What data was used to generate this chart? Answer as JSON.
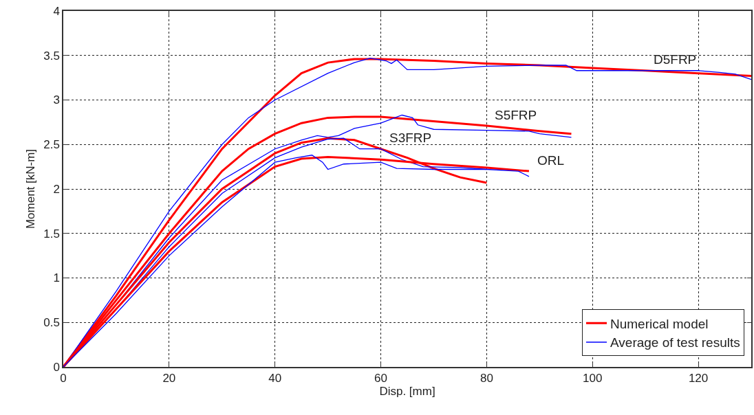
{
  "chart_data": {
    "type": "line",
    "xlabel": "Disp. [mm]",
    "ylabel": "Moment [kN-m]",
    "xlim": [
      0,
      130
    ],
    "ylim": [
      0,
      4
    ],
    "xticks": [
      0,
      20,
      40,
      60,
      80,
      100,
      120
    ],
    "yticks": [
      0,
      0.5,
      1,
      1.5,
      2,
      2.5,
      3,
      3.5,
      4
    ],
    "grid": true,
    "legend": "bottom right",
    "line_style": "solid",
    "series": [
      {
        "name": "Numerical model",
        "color": "#ff0000",
        "x": [
          0,
          10,
          20,
          30,
          40,
          45,
          50,
          55,
          60,
          70,
          80,
          90,
          100,
          110,
          120,
          130
        ],
        "values": [
          0,
          0.8,
          1.65,
          2.45,
          3.05,
          3.3,
          3.42,
          3.46,
          3.46,
          3.44,
          3.41,
          3.39,
          3.36,
          3.33,
          3.3,
          3.27
        ]
      },
      {
        "name": "Average of test results",
        "color": "#0000ff",
        "x": [
          0,
          10,
          20,
          30,
          35,
          40,
          50,
          55,
          58,
          61,
          62,
          63,
          65,
          70,
          75,
          80,
          90,
          95,
          97,
          105,
          120,
          124,
          127,
          130
        ],
        "values": [
          0,
          0.85,
          1.75,
          2.5,
          2.8,
          3.0,
          3.3,
          3.42,
          3.47,
          3.44,
          3.41,
          3.45,
          3.34,
          3.34,
          3.36,
          3.38,
          3.39,
          3.39,
          3.33,
          3.33,
          3.33,
          3.31,
          3.29,
          3.23
        ]
      },
      {
        "color": "#ff0000",
        "x": [
          0,
          10,
          20,
          30,
          35,
          40,
          45,
          50,
          55,
          60,
          70,
          80,
          90,
          96
        ],
        "values": [
          0,
          0.75,
          1.5,
          2.2,
          2.45,
          2.62,
          2.74,
          2.8,
          2.81,
          2.81,
          2.76,
          2.71,
          2.65,
          2.62
        ]
      },
      {
        "color": "#0000ff",
        "x": [
          0,
          10,
          20,
          30,
          40,
          45,
          48,
          50,
          52,
          55,
          60,
          64,
          66,
          67,
          70,
          80,
          88,
          90,
          96
        ],
        "values": [
          0,
          0.7,
          1.45,
          2.1,
          2.45,
          2.55,
          2.6,
          2.58,
          2.6,
          2.68,
          2.74,
          2.83,
          2.8,
          2.72,
          2.67,
          2.66,
          2.65,
          2.62,
          2.58
        ]
      },
      {
        "color": "#ff0000",
        "x": [
          0,
          10,
          20,
          30,
          40,
          45,
          50,
          55,
          60,
          65,
          70,
          75,
          80
        ],
        "values": [
          0,
          0.7,
          1.4,
          2.0,
          2.4,
          2.52,
          2.57,
          2.55,
          2.45,
          2.35,
          2.23,
          2.13,
          2.07
        ]
      },
      {
        "color": "#0000ff",
        "x": [
          0,
          10,
          20,
          30,
          40,
          45,
          50,
          53,
          56,
          60,
          64,
          68,
          75,
          80
        ],
        "values": [
          0,
          0.65,
          1.35,
          1.95,
          2.35,
          2.47,
          2.56,
          2.57,
          2.45,
          2.45,
          2.33,
          2.25,
          2.24,
          2.22
        ]
      },
      {
        "color": "#ff0000",
        "x": [
          0,
          10,
          20,
          30,
          40,
          45,
          50,
          60,
          70,
          80,
          88
        ],
        "values": [
          0,
          0.65,
          1.3,
          1.85,
          2.25,
          2.34,
          2.36,
          2.33,
          2.28,
          2.24,
          2.2
        ]
      },
      {
        "color": "#0000ff",
        "x": [
          0,
          10,
          20,
          30,
          40,
          44,
          47,
          49,
          50,
          53,
          60,
          63,
          70,
          80,
          86,
          88
        ],
        "values": [
          0,
          0.6,
          1.25,
          1.8,
          2.3,
          2.35,
          2.38,
          2.3,
          2.22,
          2.28,
          2.3,
          2.23,
          2.22,
          2.22,
          2.2,
          2.14
        ]
      }
    ],
    "annotations": [
      {
        "text": "D5FRP",
        "x": 110,
        "y": 3.33
      },
      {
        "text": "S5FRP",
        "x": 80,
        "y": 2.71
      },
      {
        "text": "S3FRP",
        "x": 60,
        "y": 2.45
      },
      {
        "text": "ORL",
        "x": 88,
        "y": 2.2
      }
    ]
  }
}
